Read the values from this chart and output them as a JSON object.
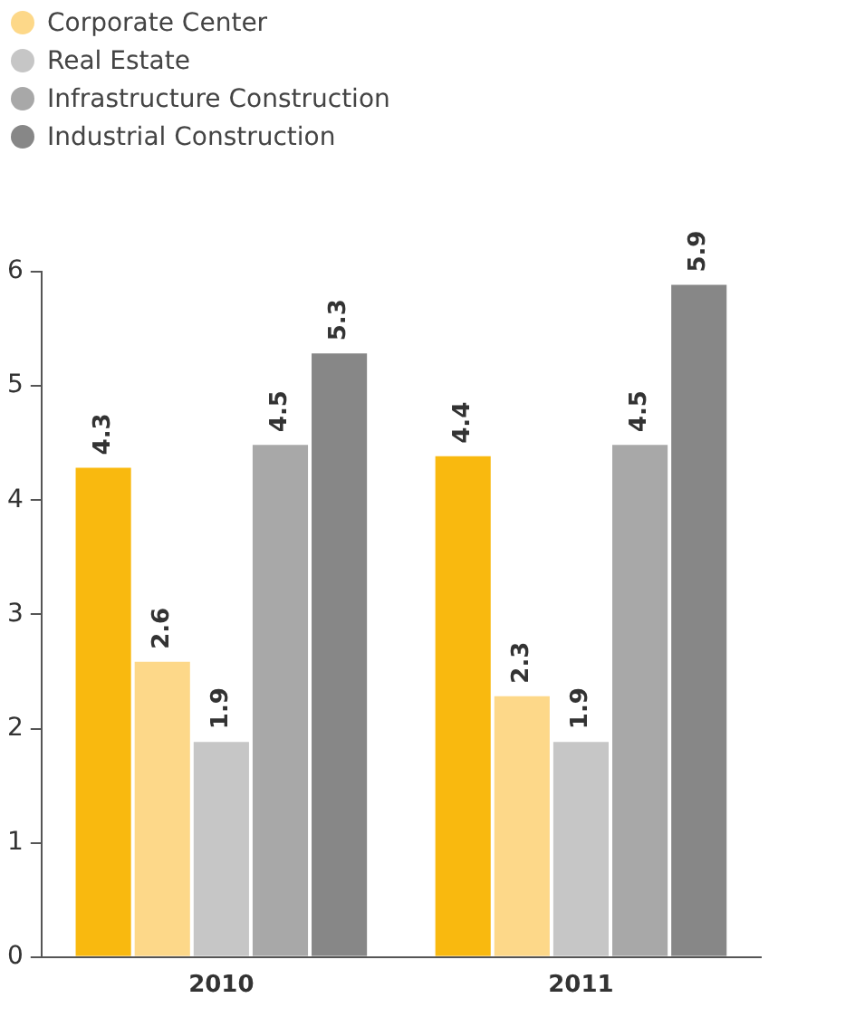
{
  "chart_data": {
    "type": "bar",
    "categories": [
      "2010",
      "2011"
    ],
    "series": [
      {
        "color": "#f9b90f",
        "values": [
          4.3,
          4.4
        ]
      },
      {
        "name": "Corporate Center",
        "color": "#fdd889",
        "values": [
          2.6,
          2.3
        ]
      },
      {
        "name": "Real Estate",
        "color": "#c6c6c6",
        "values": [
          1.9,
          1.9
        ]
      },
      {
        "name": "Infrastructure Construction",
        "color": "#a8a8a8",
        "values": [
          4.5,
          4.5
        ]
      },
      {
        "name": "Industrial Construction",
        "color": "#878787",
        "values": [
          5.3,
          5.9
        ]
      }
    ],
    "ylim": [
      0,
      6
    ],
    "yticks": [
      0,
      1,
      2,
      3,
      4,
      5,
      6
    ],
    "grid": false,
    "legend": "top left",
    "data_labels": true
  }
}
